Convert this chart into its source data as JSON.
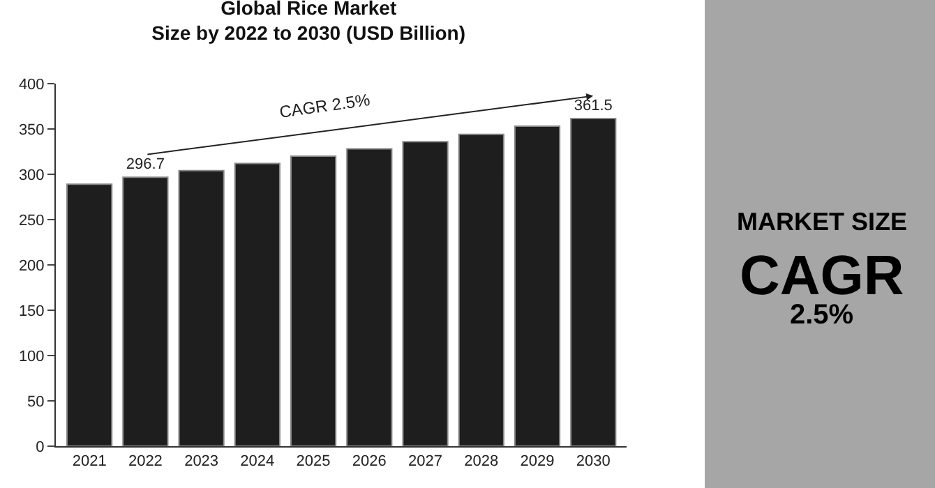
{
  "chart_data": {
    "type": "bar",
    "title": "Global Rice Market\nSize by 2022 to 2030 (USD Billion)",
    "categories": [
      "2021",
      "2022",
      "2023",
      "2024",
      "2025",
      "2026",
      "2027",
      "2028",
      "2029",
      "2030"
    ],
    "values": [
      289,
      296.7,
      304,
      312,
      320,
      328,
      336,
      344,
      353,
      361.5
    ],
    "value_labels": [
      null,
      "296.7",
      null,
      null,
      null,
      null,
      null,
      null,
      null,
      "361.5"
    ],
    "color": "#1e1e1e",
    "ylim": [
      0,
      400
    ],
    "yticks": [
      0,
      50,
      100,
      150,
      200,
      250,
      300,
      350,
      400
    ],
    "legend": false,
    "annotations": [
      "CAGR 2.5%",
      "MARKET SIZE",
      "CAGR",
      "2.5%"
    ]
  }
}
